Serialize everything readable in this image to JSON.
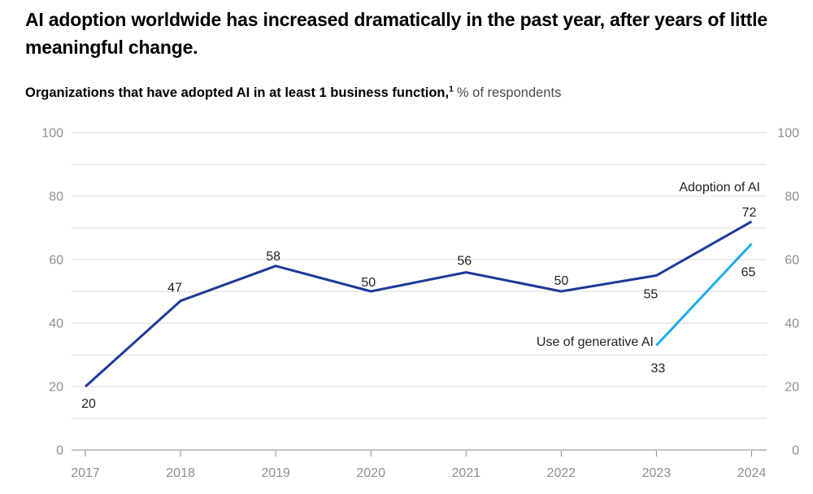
{
  "header": {
    "title": "AI adoption worldwide has increased dramatically in the past year, after years of little meaningful change.",
    "subtitle_bold": "Organizations that have adopted AI in at least 1 business function,",
    "footnote_marker": "1",
    "subtitle_regular": "% of respondents"
  },
  "colors": {
    "adoption_line": "#1c3a99",
    "genai_line": "#1facf0",
    "grid": "#dbdbdb",
    "axis": "#8a8a8a",
    "axis_label": "#8f8f8f",
    "value_label": "#1f1f1f",
    "series_label": "#1f1f1f",
    "title": "#000000",
    "subtitle_unit": "#4a4a4a"
  },
  "chart_data": {
    "type": "line",
    "x": [
      2017,
      2018,
      2019,
      2020,
      2021,
      2022,
      2023,
      2024
    ],
    "series": [
      {
        "name": "Adoption of AI",
        "color": "#1c3a99",
        "values": [
          20,
          47,
          58,
          50,
          56,
          50,
          55,
          72
        ]
      },
      {
        "name": "Use of generative AI",
        "color": "#1facf0",
        "values": [
          null,
          null,
          null,
          null,
          null,
          null,
          33,
          65
        ]
      }
    ],
    "ylim": [
      0,
      100
    ],
    "yticks_labeled": [
      0,
      20,
      40,
      60,
      80,
      100
    ],
    "ygrid_step": 10,
    "grid": true,
    "y_axis_labels": "both-sides",
    "x_axis_ticks": true,
    "data_labels": true,
    "legend": "inline-series-labels"
  }
}
